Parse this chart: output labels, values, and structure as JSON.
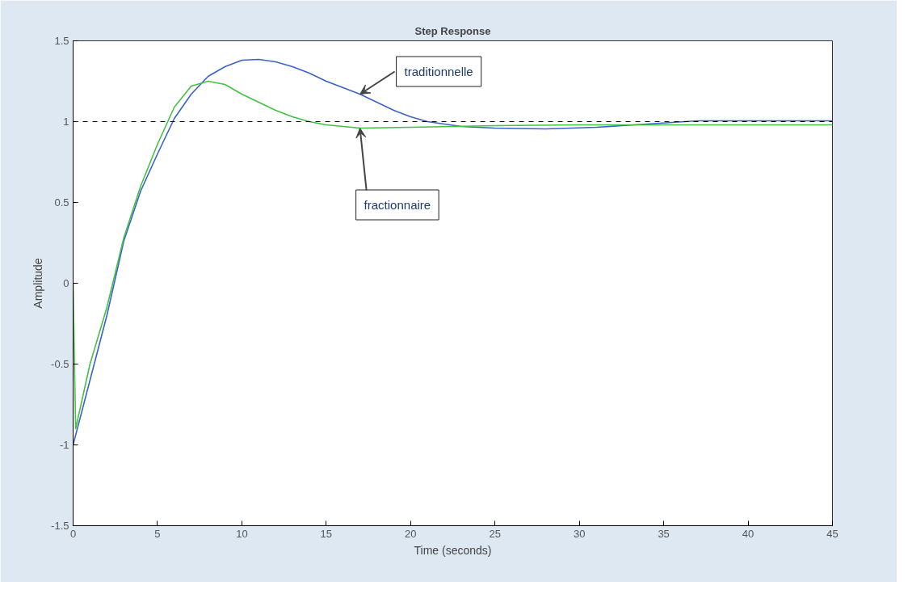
{
  "chart_data": {
    "type": "line",
    "title": "Step Response",
    "xlabel": "Time (seconds)",
    "ylabel": "Amplitude",
    "xlim": [
      0,
      45
    ],
    "ylim": [
      -1.5,
      1.5
    ],
    "xticks": [
      0,
      5,
      10,
      15,
      20,
      25,
      30,
      35,
      40,
      45
    ],
    "yticks": [
      -1.5,
      -1,
      -0.5,
      0,
      0.5,
      1,
      1.5
    ],
    "grid": false,
    "marker": "none",
    "line_style": "solid",
    "series": [
      {
        "color": "#3a62c8",
        "x": [
          0,
          1,
          2,
          3,
          4,
          5,
          6,
          7,
          8,
          9,
          10,
          11,
          12,
          13,
          14,
          15,
          16,
          17,
          18,
          19,
          20,
          21,
          23,
          25,
          28,
          31,
          34,
          37,
          45
        ],
        "values": [
          -1,
          -0.6,
          -0.2,
          0.26,
          0.57,
          0.8,
          1.02,
          1.17,
          1.28,
          1.34,
          1.38,
          1.385,
          1.37,
          1.34,
          1.3,
          1.25,
          1.21,
          1.17,
          1.12,
          1.07,
          1.03,
          1.0,
          0.97,
          0.96,
          0.955,
          0.965,
          0.985,
          1.005,
          1.005
        ]
      },
      {
        "color": "#44c044",
        "x": [
          0,
          0.15,
          1,
          2,
          3,
          4,
          5,
          6,
          7,
          8,
          9,
          10,
          11,
          12,
          13,
          14,
          15,
          17,
          20,
          25,
          30,
          45
        ],
        "values": [
          0,
          -0.9,
          -0.5,
          -0.15,
          0.28,
          0.6,
          0.86,
          1.09,
          1.22,
          1.25,
          1.23,
          1.17,
          1.12,
          1.07,
          1.03,
          1.0,
          0.98,
          0.96,
          0.965,
          0.975,
          0.98,
          0.98
        ]
      }
    ],
    "ref_lines": [
      {
        "axis": "y",
        "value": 1,
        "color": "#000000",
        "line_style": "dashed"
      }
    ],
    "annotations": [
      {
        "text": "traditionnelle",
        "x": 17,
        "y": 1.17
      },
      {
        "text": "fractionnaire",
        "x": 17,
        "y": 0.96
      }
    ]
  }
}
